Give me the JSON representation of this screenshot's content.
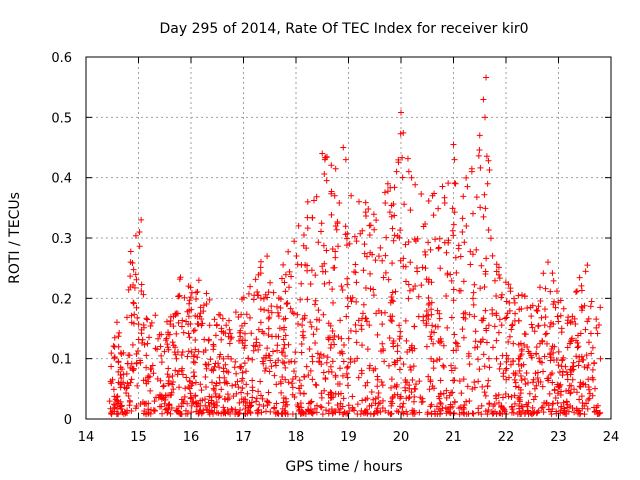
{
  "chart_data": {
    "type": "scatter",
    "title": "Day 295 of 2014, Rate Of TEC Index for receiver kir0",
    "xlabel": "GPS time / hours",
    "ylabel": "ROTI / TECUs",
    "xlim": [
      14,
      24
    ],
    "ylim": [
      0,
      0.6
    ],
    "xticks": [
      14,
      15,
      16,
      17,
      18,
      19,
      20,
      21,
      22,
      23,
      24
    ],
    "yticks": [
      0,
      0.1,
      0.2,
      0.3,
      0.4,
      0.5,
      0.6
    ],
    "xtick_labels": [
      "14",
      "15",
      "16",
      "17",
      "18",
      "19",
      "20",
      "21",
      "22",
      "23",
      "24"
    ],
    "ytick_labels": [
      "0",
      "0.1",
      "0.2",
      "0.3",
      "0.4",
      "0.5",
      "0.6"
    ],
    "grid": true,
    "marker": "+",
    "color": "#ff0000",
    "series": [
      {
        "name": "ROTI",
        "x_range": [
          14.45,
          23.8
        ],
        "n_points": 1900,
        "envelope": [
          [
            14.45,
            0.12
          ],
          [
            14.6,
            0.17
          ],
          [
            14.8,
            0.26
          ],
          [
            15.0,
            0.33
          ],
          [
            15.1,
            0.2
          ],
          [
            15.5,
            0.15
          ],
          [
            15.8,
            0.24
          ],
          [
            16.3,
            0.21
          ],
          [
            16.7,
            0.16
          ],
          [
            17.0,
            0.22
          ],
          [
            17.3,
            0.28
          ],
          [
            17.7,
            0.25
          ],
          [
            18.0,
            0.32
          ],
          [
            18.3,
            0.38
          ],
          [
            18.5,
            0.44
          ],
          [
            18.8,
            0.43
          ],
          [
            19.0,
            0.36
          ],
          [
            19.3,
            0.36
          ],
          [
            19.6,
            0.4
          ],
          [
            19.85,
            0.38
          ],
          [
            20.0,
            0.51
          ],
          [
            20.3,
            0.39
          ],
          [
            20.6,
            0.37
          ],
          [
            21.0,
            0.45
          ],
          [
            21.3,
            0.4
          ],
          [
            21.6,
            0.57
          ],
          [
            21.8,
            0.26
          ],
          [
            22.2,
            0.21
          ],
          [
            22.5,
            0.2
          ],
          [
            22.8,
            0.26
          ],
          [
            23.2,
            0.19
          ],
          [
            23.5,
            0.26
          ],
          [
            23.8,
            0.2
          ]
        ],
        "highlights": [
          {
            "x": 15.05,
            "y": 0.33
          },
          {
            "x": 15.02,
            "y": 0.31
          },
          {
            "x": 14.85,
            "y": 0.26
          },
          {
            "x": 15.8,
            "y": 0.235
          },
          {
            "x": 16.15,
            "y": 0.23
          },
          {
            "x": 17.45,
            "y": 0.27
          },
          {
            "x": 18.05,
            "y": 0.32
          },
          {
            "x": 18.5,
            "y": 0.44
          },
          {
            "x": 18.55,
            "y": 0.43
          },
          {
            "x": 18.9,
            "y": 0.45
          },
          {
            "x": 18.95,
            "y": 0.43
          },
          {
            "x": 19.05,
            "y": 0.37
          },
          {
            "x": 19.2,
            "y": 0.36
          },
          {
            "x": 19.75,
            "y": 0.39
          },
          {
            "x": 20.0,
            "y": 0.508
          },
          {
            "x": 20.15,
            "y": 0.41
          },
          {
            "x": 20.6,
            "y": 0.37
          },
          {
            "x": 21.0,
            "y": 0.455
          },
          {
            "x": 21.02,
            "y": 0.43
          },
          {
            "x": 21.35,
            "y": 0.41
          },
          {
            "x": 21.5,
            "y": 0.47
          },
          {
            "x": 21.62,
            "y": 0.566
          },
          {
            "x": 21.6,
            "y": 0.5
          },
          {
            "x": 21.65,
            "y": 0.39
          },
          {
            "x": 22.8,
            "y": 0.26
          },
          {
            "x": 23.55,
            "y": 0.255
          }
        ]
      }
    ]
  }
}
